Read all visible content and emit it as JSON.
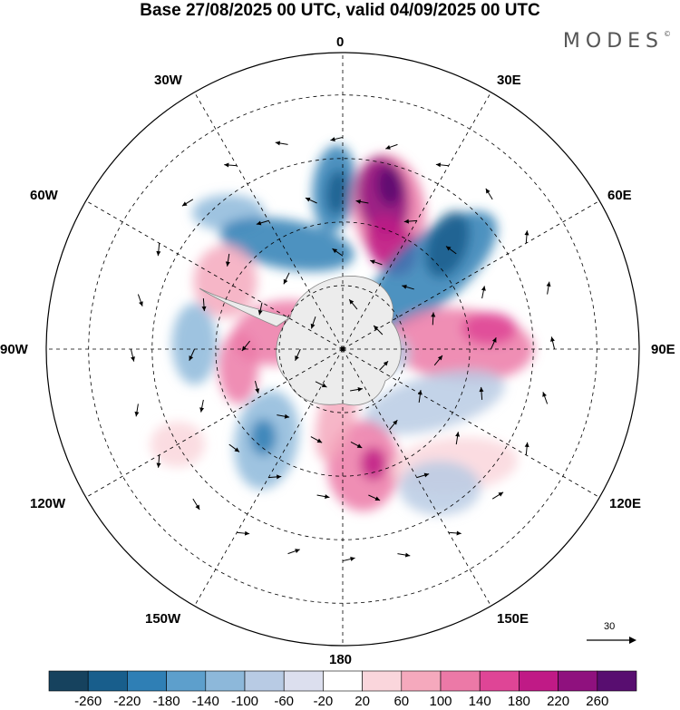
{
  "title": "Base 27/08/2025 00 UTC, valid 04/09/2025 00 UTC",
  "brand": "MODES",
  "brand_mark": "©",
  "longitude_labels": {
    "n0": "0",
    "n30e": "30E",
    "n60e": "60E",
    "n90e": "90E",
    "n120e": "120E",
    "n150e": "150E",
    "n180": "180",
    "n150w": "150W",
    "n120w": "120W",
    "n90w": "90W",
    "n60w": "60W",
    "n30w": "30W"
  },
  "vector_scale": {
    "value": "30"
  },
  "colorbar": {
    "colors": [
      "#16425e",
      "#185e8c",
      "#2f7fb5",
      "#5d9fcc",
      "#8db8da",
      "#b8cbe4",
      "#dcdfee",
      "#ffffff",
      "#fad6dc",
      "#f5a9bd",
      "#ec79a7",
      "#df4596",
      "#c01a86",
      "#8f117e",
      "#580e70"
    ],
    "labels": [
      "-260",
      "-220",
      "-180",
      "-140",
      "-100",
      "-60",
      "-20",
      "20",
      "60",
      "100",
      "140",
      "180",
      "220",
      "260"
    ]
  },
  "anomalies": [
    {
      "c": "#2f7fb5",
      "lat": -52,
      "lon": -3,
      "rx": 24,
      "ry": 48,
      "rot": 5
    },
    {
      "c": "#185e8c",
      "lat": -53,
      "lon": -2,
      "rx": 12,
      "ry": 25,
      "rot": 5
    },
    {
      "c": "#ec79a7",
      "lat": -55,
      "lon": 18,
      "rx": 40,
      "ry": 60,
      "rot": -8
    },
    {
      "c": "#8f117e",
      "lat": -53,
      "lon": 15,
      "rx": 28,
      "ry": 45,
      "rot": -8
    },
    {
      "c": "#c01a86",
      "lat": -63,
      "lon": 25,
      "rx": 25,
      "ry": 35,
      "rot": -30
    },
    {
      "c": "#580e70",
      "lat": -50,
      "lon": 16,
      "rx": 14,
      "ry": 22,
      "rot": -8
    },
    {
      "c": "#2f7fb5",
      "lat": -62,
      "lon": 48,
      "rx": 38,
      "ry": 90,
      "rot": 50
    },
    {
      "c": "#185e8c",
      "lat": -55,
      "lon": 45,
      "rx": 22,
      "ry": 38,
      "rot": 20
    },
    {
      "c": "#8db8da",
      "lat": -48,
      "lon": -40,
      "rx": 40,
      "ry": 20,
      "rot": 0
    },
    {
      "c": "#2f7fb5",
      "lat": -62,
      "lon": -28,
      "rx": 75,
      "ry": 27,
      "rot": 10
    },
    {
      "c": "#f5a9bd",
      "lat": -58,
      "lon": -60,
      "rx": 35,
      "ry": 40,
      "rot": 0
    },
    {
      "c": "#ec79a7",
      "lat": -75,
      "lon": -75,
      "rx": 55,
      "ry": 35,
      "rot": -10
    },
    {
      "c": "#ec79a7",
      "lat": -65,
      "lon": -100,
      "rx": 22,
      "ry": 40,
      "rot": 0
    },
    {
      "c": "#8db8da",
      "lat": -55,
      "lon": -88,
      "rx": 25,
      "ry": 45,
      "rot": 0
    },
    {
      "c": "#ec79a7",
      "lat": -62,
      "lon": 88,
      "rx": 80,
      "ry": 40,
      "rot": 5
    },
    {
      "c": "#df4596",
      "lat": -55,
      "lon": 82,
      "rx": 30,
      "ry": 18,
      "rot": 0
    },
    {
      "c": "#b8cbe4",
      "lat": -65,
      "lon": 120,
      "rx": 80,
      "ry": 30,
      "rot": -15
    },
    {
      "c": "#8db8da",
      "lat": -62,
      "lon": -140,
      "rx": 35,
      "ry": 55,
      "rot": 10
    },
    {
      "c": "#2f7fb5",
      "lat": -62,
      "lon": -138,
      "rx": 14,
      "ry": 20,
      "rot": 0
    },
    {
      "c": "#ec79a7",
      "lat": -62,
      "lon": 170,
      "rx": 40,
      "ry": 50,
      "rot": 0
    },
    {
      "c": "#c01a86",
      "lat": -62,
      "lon": 165,
      "rx": 14,
      "ry": 18,
      "rot": 0
    },
    {
      "c": "#f5a9bd",
      "lat": -75,
      "lon": -175,
      "rx": 20,
      "ry": 55,
      "rot": 15
    },
    {
      "c": "#fad6dc",
      "lat": -52,
      "lon": 136,
      "rx": 70,
      "ry": 30,
      "rot": -5
    },
    {
      "c": "#b8cbe4",
      "lat": -50,
      "lon": 145,
      "rx": 45,
      "ry": 30,
      "rot": 0
    },
    {
      "c": "#fad6dc",
      "lat": -45,
      "lon": -120,
      "rx": 30,
      "ry": 25,
      "rot": 0
    },
    {
      "c": "#b8cbe4",
      "lat": -80,
      "lon": 95,
      "rx": 28,
      "ry": 22,
      "rot": 0
    }
  ],
  "arrows": [
    {
      "lat": -40,
      "lon": 0
    },
    {
      "lat": -40,
      "lon": 15
    },
    {
      "lat": -40,
      "lon": 30
    },
    {
      "lat": -40,
      "lon": 45
    },
    {
      "lat": -40,
      "lon": 60
    },
    {
      "lat": -40,
      "lon": 75
    },
    {
      "lat": -40,
      "lon": 90
    },
    {
      "lat": -40,
      "lon": 105
    },
    {
      "lat": -40,
      "lon": 120
    },
    {
      "lat": -40,
      "lon": 135
    },
    {
      "lat": -40,
      "lon": 150
    },
    {
      "lat": -40,
      "lon": 165
    },
    {
      "lat": -40,
      "lon": 180
    },
    {
      "lat": -40,
      "lon": -165
    },
    {
      "lat": -40,
      "lon": -150
    },
    {
      "lat": -40,
      "lon": -135
    },
    {
      "lat": -40,
      "lon": -120
    },
    {
      "lat": -40,
      "lon": -105
    },
    {
      "lat": -40,
      "lon": -90
    },
    {
      "lat": -40,
      "lon": -75
    },
    {
      "lat": -40,
      "lon": -60
    },
    {
      "lat": -40,
      "lon": -45
    },
    {
      "lat": -40,
      "lon": -30
    },
    {
      "lat": -40,
      "lon": -15
    },
    {
      "lat": -55,
      "lon": 10
    },
    {
      "lat": -55,
      "lon": 30
    },
    {
      "lat": -55,
      "lon": 50
    },
    {
      "lat": -55,
      "lon": 70
    },
    {
      "lat": -55,
      "lon": 90
    },
    {
      "lat": -55,
      "lon": 110
    },
    {
      "lat": -55,
      "lon": 130
    },
    {
      "lat": -55,
      "lon": 150
    },
    {
      "lat": -55,
      "lon": 170
    },
    {
      "lat": -55,
      "lon": -170
    },
    {
      "lat": -55,
      "lon": -150
    },
    {
      "lat": -55,
      "lon": -130
    },
    {
      "lat": -55,
      "lon": -110
    },
    {
      "lat": -55,
      "lon": -90
    },
    {
      "lat": -55,
      "lon": -70
    },
    {
      "lat": -55,
      "lon": -50
    },
    {
      "lat": -55,
      "lon": -30
    },
    {
      "lat": -55,
      "lon": -10
    },
    {
      "lat": -68,
      "lon": 0
    },
    {
      "lat": -68,
      "lon": 25
    },
    {
      "lat": -68,
      "lon": 50
    },
    {
      "lat": -68,
      "lon": 75
    },
    {
      "lat": -68,
      "lon": 100
    },
    {
      "lat": -68,
      "lon": 125
    },
    {
      "lat": -68,
      "lon": 150
    },
    {
      "lat": -68,
      "lon": 175
    },
    {
      "lat": -68,
      "lon": -160
    },
    {
      "lat": -68,
      "lon": -135
    },
    {
      "lat": -68,
      "lon": -110
    },
    {
      "lat": -68,
      "lon": -85
    },
    {
      "lat": -68,
      "lon": -60
    },
    {
      "lat": -68,
      "lon": -35
    },
    {
      "lat": -80,
      "lon": 20
    },
    {
      "lat": -80,
      "lon": 70
    },
    {
      "lat": -80,
      "lon": 120
    },
    {
      "lat": -80,
      "lon": 170
    },
    {
      "lat": -80,
      "lon": -140
    },
    {
      "lat": -80,
      "lon": -90
    },
    {
      "lat": -80,
      "lon": -40
    }
  ]
}
